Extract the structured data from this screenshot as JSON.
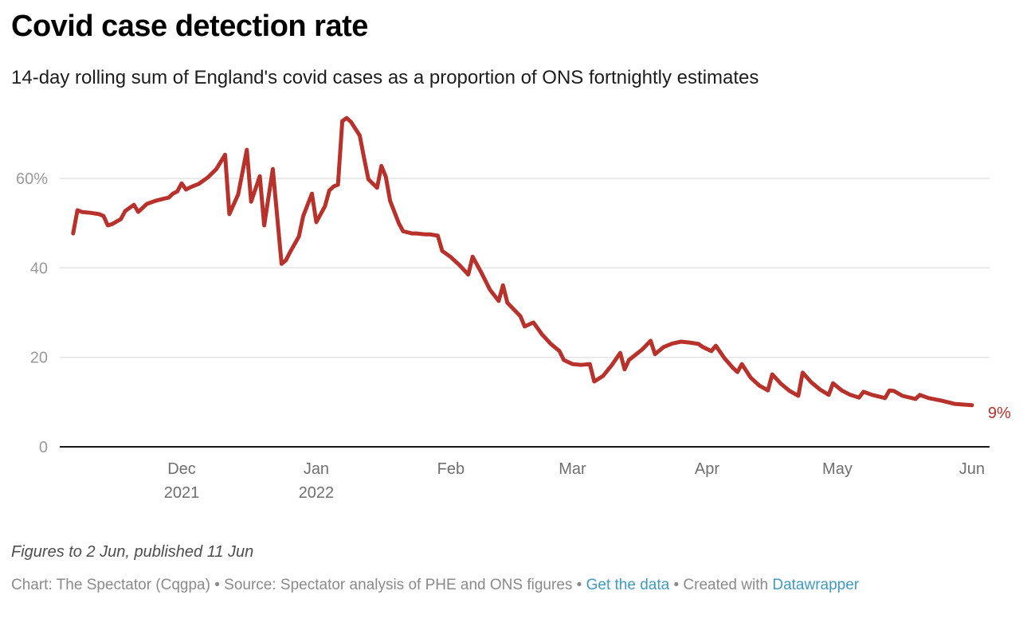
{
  "header": {
    "title": "Covid case detection rate",
    "subtitle": "14-day rolling sum of England's covid cases as a proportion of ONS fortnightly estimates"
  },
  "footer": {
    "notes": "Figures to 2 Jun, published 11 Jun",
    "chart_credit": "Chart: The Spectator (Cqgpa)",
    "separator": " • ",
    "source": "Source: Spectator analysis of PHE and ONS figures",
    "get_data_link": "Get the data",
    "created_with": "Created with ",
    "datawrapper_link": "Datawrapper"
  },
  "colors": {
    "line": "#b8312a",
    "gridline": "#e3e3e3",
    "baseline": "#1a1a1a",
    "link": "#3f9ac6"
  },
  "chart_data": {
    "type": "line",
    "title": "Covid case detection rate",
    "subtitle": "14-day rolling sum of England's covid cases as a proportion of ONS fortnightly estimates",
    "xlabel": "",
    "ylabel": "",
    "unit": "%",
    "ylim": [
      0,
      75
    ],
    "xlim": [
      "2021-11-06",
      "2022-06-04"
    ],
    "grid": true,
    "legend": "none",
    "yticks": [
      {
        "value": 0,
        "label": "0"
      },
      {
        "value": 20,
        "label": "20"
      },
      {
        "value": 40,
        "label": "40"
      },
      {
        "value": 60,
        "label": "60%"
      }
    ],
    "xticks": [
      {
        "date": "2021-12-01",
        "label": "Dec",
        "sublabel": "2021"
      },
      {
        "date": "2022-01-01",
        "label": "Jan",
        "sublabel": "2022"
      },
      {
        "date": "2022-02-01",
        "label": "Feb",
        "sublabel": ""
      },
      {
        "date": "2022-03-01",
        "label": "Mar",
        "sublabel": ""
      },
      {
        "date": "2022-04-01",
        "label": "Apr",
        "sublabel": ""
      },
      {
        "date": "2022-05-01",
        "label": "May",
        "sublabel": ""
      },
      {
        "date": "2022-06-01",
        "label": "Jun",
        "sublabel": ""
      }
    ],
    "end_label": "9%",
    "series": [
      {
        "name": "Case detection rate",
        "points": [
          [
            "2021-11-06",
            47.7
          ],
          [
            "2021-11-07",
            52.9
          ],
          [
            "2021-11-08",
            52.5
          ],
          [
            "2021-11-10",
            52.3
          ],
          [
            "2021-11-12",
            52.0
          ],
          [
            "2021-11-13",
            51.6
          ],
          [
            "2021-11-14",
            49.5
          ],
          [
            "2021-11-15",
            49.8
          ],
          [
            "2021-11-17",
            50.9
          ],
          [
            "2021-11-18",
            52.7
          ],
          [
            "2021-11-20",
            54.1
          ],
          [
            "2021-11-21",
            52.5
          ],
          [
            "2021-11-22",
            53.4
          ],
          [
            "2021-11-23",
            54.3
          ],
          [
            "2021-11-25",
            55.0
          ],
          [
            "2021-11-27",
            55.5
          ],
          [
            "2021-11-28",
            55.7
          ],
          [
            "2021-11-29",
            56.6
          ],
          [
            "2021-11-30",
            57.1
          ],
          [
            "2021-12-01",
            58.9
          ],
          [
            "2021-12-02",
            57.5
          ],
          [
            "2021-12-03",
            58.0
          ],
          [
            "2021-12-05",
            58.8
          ],
          [
            "2021-12-07",
            60.2
          ],
          [
            "2021-12-09",
            62.1
          ],
          [
            "2021-12-11",
            65.3
          ],
          [
            "2021-12-12",
            52.0
          ],
          [
            "2021-12-14",
            56.4
          ],
          [
            "2021-12-16",
            66.4
          ],
          [
            "2021-12-17",
            54.8
          ],
          [
            "2021-12-19",
            60.5
          ],
          [
            "2021-12-20",
            49.5
          ],
          [
            "2021-12-22",
            62.1
          ],
          [
            "2021-12-24",
            40.9
          ],
          [
            "2021-12-25",
            41.7
          ],
          [
            "2021-12-26",
            43.6
          ],
          [
            "2021-12-28",
            47.0
          ],
          [
            "2021-12-29",
            51.6
          ],
          [
            "2021-12-31",
            56.6
          ],
          [
            "2022-01-01",
            50.2
          ],
          [
            "2022-01-03",
            53.8
          ],
          [
            "2022-01-04",
            57.3
          ],
          [
            "2022-01-05",
            58.2
          ],
          [
            "2022-01-06",
            58.6
          ],
          [
            "2022-01-07",
            72.8
          ],
          [
            "2022-01-08",
            73.5
          ],
          [
            "2022-01-09",
            72.6
          ],
          [
            "2022-01-11",
            69.6
          ],
          [
            "2022-01-12",
            64.6
          ],
          [
            "2022-01-13",
            59.8
          ],
          [
            "2022-01-15",
            57.9
          ],
          [
            "2022-01-16",
            62.8
          ],
          [
            "2022-01-17",
            60.4
          ],
          [
            "2022-01-18",
            55.0
          ],
          [
            "2022-01-20",
            50.0
          ],
          [
            "2022-01-21",
            48.2
          ],
          [
            "2022-01-23",
            47.7
          ],
          [
            "2022-01-24",
            47.7
          ],
          [
            "2022-01-26",
            47.5
          ],
          [
            "2022-01-27",
            47.5
          ],
          [
            "2022-01-29",
            47.2
          ],
          [
            "2022-01-30",
            43.8
          ],
          [
            "2022-02-01",
            42.4
          ],
          [
            "2022-02-03",
            40.6
          ],
          [
            "2022-02-05",
            38.5
          ],
          [
            "2022-02-06",
            42.5
          ],
          [
            "2022-02-08",
            39.0
          ],
          [
            "2022-02-10",
            35.1
          ],
          [
            "2022-02-12",
            32.6
          ],
          [
            "2022-02-13",
            36.1
          ],
          [
            "2022-02-14",
            32.2
          ],
          [
            "2022-02-17",
            29.2
          ],
          [
            "2022-02-18",
            26.9
          ],
          [
            "2022-02-20",
            27.8
          ],
          [
            "2022-02-22",
            25.1
          ],
          [
            "2022-02-24",
            23.0
          ],
          [
            "2022-02-26",
            21.4
          ],
          [
            "2022-02-27",
            19.4
          ],
          [
            "2022-03-01",
            18.5
          ],
          [
            "2022-03-03",
            18.3
          ],
          [
            "2022-03-05",
            18.5
          ],
          [
            "2022-03-06",
            14.6
          ],
          [
            "2022-03-08",
            15.8
          ],
          [
            "2022-03-10",
            18.2
          ],
          [
            "2022-03-12",
            21.0
          ],
          [
            "2022-03-13",
            17.3
          ],
          [
            "2022-03-14",
            19.4
          ],
          [
            "2022-03-17",
            21.7
          ],
          [
            "2022-03-19",
            23.7
          ],
          [
            "2022-03-20",
            20.7
          ],
          [
            "2022-03-22",
            22.3
          ],
          [
            "2022-03-24",
            23.1
          ],
          [
            "2022-03-26",
            23.5
          ],
          [
            "2022-03-28",
            23.3
          ],
          [
            "2022-03-30",
            23.0
          ],
          [
            "2022-03-31",
            22.3
          ],
          [
            "2022-04-02",
            21.4
          ],
          [
            "2022-04-03",
            22.6
          ],
          [
            "2022-04-05",
            19.8
          ],
          [
            "2022-04-07",
            17.6
          ],
          [
            "2022-04-08",
            16.7
          ],
          [
            "2022-04-09",
            18.5
          ],
          [
            "2022-04-11",
            15.5
          ],
          [
            "2022-04-13",
            13.7
          ],
          [
            "2022-04-15",
            12.6
          ],
          [
            "2022-04-16",
            16.2
          ],
          [
            "2022-04-18",
            14.1
          ],
          [
            "2022-04-20",
            12.5
          ],
          [
            "2022-04-22",
            11.4
          ],
          [
            "2022-04-23",
            16.6
          ],
          [
            "2022-04-25",
            14.4
          ],
          [
            "2022-04-27",
            12.8
          ],
          [
            "2022-04-29",
            11.6
          ],
          [
            "2022-04-30",
            14.2
          ],
          [
            "2022-05-02",
            12.6
          ],
          [
            "2022-05-04",
            11.6
          ],
          [
            "2022-05-06",
            11.0
          ],
          [
            "2022-05-07",
            12.3
          ],
          [
            "2022-05-09",
            11.6
          ],
          [
            "2022-05-12",
            10.9
          ],
          [
            "2022-05-13",
            12.6
          ],
          [
            "2022-05-14",
            12.5
          ],
          [
            "2022-05-16",
            11.4
          ],
          [
            "2022-05-19",
            10.7
          ],
          [
            "2022-05-20",
            11.6
          ],
          [
            "2022-05-22",
            10.9
          ],
          [
            "2022-05-25",
            10.3
          ],
          [
            "2022-05-28",
            9.6
          ],
          [
            "2022-06-01",
            9.3
          ]
        ]
      }
    ]
  }
}
